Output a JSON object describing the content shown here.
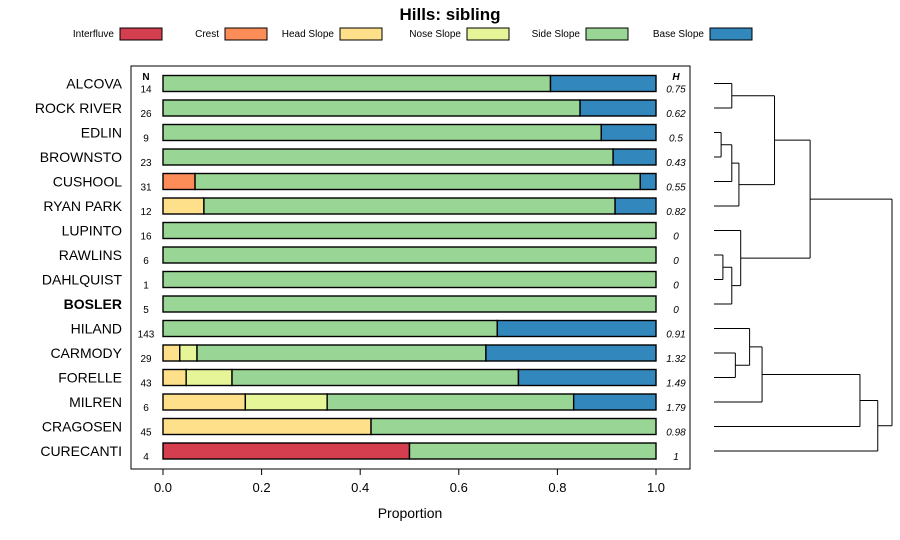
{
  "chart_data": {
    "type": "bar",
    "orientation": "horizontal",
    "stacked": true,
    "title": "Hills: sibling",
    "xlabel": "Proportion",
    "ylabel": "",
    "xlim": [
      0,
      1
    ],
    "x_ticks": [
      "0.0",
      "0.2",
      "0.4",
      "0.6",
      "0.8",
      "1.0"
    ],
    "x_tick_values": [
      0,
      0.2,
      0.4,
      0.6,
      0.8,
      1.0
    ],
    "n_header": "N",
    "h_header": "H",
    "legend": [
      {
        "name": "Interfluve",
        "color": "#d53e4f"
      },
      {
        "name": "Crest",
        "color": "#fc8d59"
      },
      {
        "name": "Head Slope",
        "color": "#fee08b"
      },
      {
        "name": "Nose Slope",
        "color": "#e6f598"
      },
      {
        "name": "Side Slope",
        "color": "#99d594"
      },
      {
        "name": "Base Slope",
        "color": "#3288bd"
      }
    ],
    "rows": [
      {
        "label": "ALCOVA",
        "n": "14",
        "h": "0.75",
        "bold": false,
        "values": [
          0,
          0,
          0,
          0,
          0.786,
          0.214
        ]
      },
      {
        "label": "ROCK RIVER",
        "n": "26",
        "h": "0.62",
        "bold": false,
        "values": [
          0,
          0,
          0,
          0,
          0.846,
          0.154
        ]
      },
      {
        "label": "EDLIN",
        "n": "9",
        "h": "0.5",
        "bold": false,
        "values": [
          0,
          0,
          0,
          0,
          0.889,
          0.111
        ]
      },
      {
        "label": "BROWNSTO",
        "n": "23",
        "h": "0.43",
        "bold": false,
        "values": [
          0,
          0,
          0,
          0,
          0.913,
          0.087
        ]
      },
      {
        "label": "CUSHOOL",
        "n": "31",
        "h": "0.55",
        "bold": false,
        "values": [
          0,
          0.065,
          0,
          0,
          0.903,
          0.032
        ]
      },
      {
        "label": "RYAN PARK",
        "n": "12",
        "h": "0.82",
        "bold": false,
        "values": [
          0,
          0,
          0.083,
          0,
          0.834,
          0.083
        ]
      },
      {
        "label": "LUPINTO",
        "n": "16",
        "h": "0",
        "bold": false,
        "values": [
          0,
          0,
          0,
          0,
          1.0,
          0
        ]
      },
      {
        "label": "RAWLINS",
        "n": "6",
        "h": "0",
        "bold": false,
        "values": [
          0,
          0,
          0,
          0,
          1.0,
          0
        ]
      },
      {
        "label": "DAHLQUIST",
        "n": "1",
        "h": "0",
        "bold": false,
        "values": [
          0,
          0,
          0,
          0,
          1.0,
          0
        ]
      },
      {
        "label": "BOSLER",
        "n": "5",
        "h": "0",
        "bold": true,
        "values": [
          0,
          0,
          0,
          0,
          1.0,
          0
        ]
      },
      {
        "label": "HILAND",
        "n": "143",
        "h": "0.91",
        "bold": false,
        "values": [
          0,
          0,
          0,
          0,
          0.678,
          0.322
        ]
      },
      {
        "label": "CARMODY",
        "n": "29",
        "h": "1.32",
        "bold": false,
        "values": [
          0,
          0,
          0.034,
          0.035,
          0.586,
          0.345
        ]
      },
      {
        "label": "FORELLE",
        "n": "43",
        "h": "1.49",
        "bold": false,
        "values": [
          0,
          0,
          0.047,
          0.093,
          0.581,
          0.279
        ]
      },
      {
        "label": "MILREN",
        "n": "6",
        "h": "1.79",
        "bold": false,
        "values": [
          0,
          0,
          0.167,
          0.166,
          0.5,
          0.167
        ]
      },
      {
        "label": "CRAGOSEN",
        "n": "45",
        "h": "0.98",
        "bold": false,
        "values": [
          0,
          0,
          0.422,
          0,
          0.578,
          0
        ]
      },
      {
        "label": "CURECANTI",
        "n": "4",
        "h": "1",
        "bold": false,
        "values": [
          0.5,
          0,
          0,
          0,
          0.5,
          0
        ]
      }
    ],
    "dendrogram": {
      "leaf_order": [
        "ALCOVA",
        "ROCK RIVER",
        "EDLIN",
        "BROWNSTO",
        "CUSHOOL",
        "RYAN PARK",
        "LUPINTO",
        "RAWLINS",
        "DAHLQUIST",
        "BOSLER",
        "HILAND",
        "CARMODY",
        "FORELLE",
        "MILREN",
        "CRAGOSEN",
        "CURECANTI"
      ],
      "merges": [
        {
          "a": 0,
          "b": 1,
          "height": 0.1
        },
        {
          "a": 2,
          "b": 3,
          "height": 0.04
        },
        {
          "a": "m1",
          "b": 4,
          "height": 0.1
        },
        {
          "a": "m2",
          "b": 5,
          "height": 0.14
        },
        {
          "a": "m0",
          "b": "m3",
          "height": 0.34
        },
        {
          "a": 7,
          "b": 8,
          "height": 0.05
        },
        {
          "a": "m5",
          "b": 9,
          "height": 0.1
        },
        {
          "a": 6,
          "b": "m6",
          "height": 0.15
        },
        {
          "a": "m4",
          "b": "m7",
          "height": 0.54
        },
        {
          "a": 11,
          "b": 12,
          "height": 0.12
        },
        {
          "a": 10,
          "b": "m9",
          "height": 0.2
        },
        {
          "a": "m10",
          "b": 13,
          "height": 0.27
        },
        {
          "a": "m11",
          "b": 14,
          "height": 0.82
        },
        {
          "a": "m12",
          "b": 15,
          "height": 0.92
        },
        {
          "a": "m8",
          "b": "m13",
          "height": 1.0
        }
      ]
    }
  }
}
